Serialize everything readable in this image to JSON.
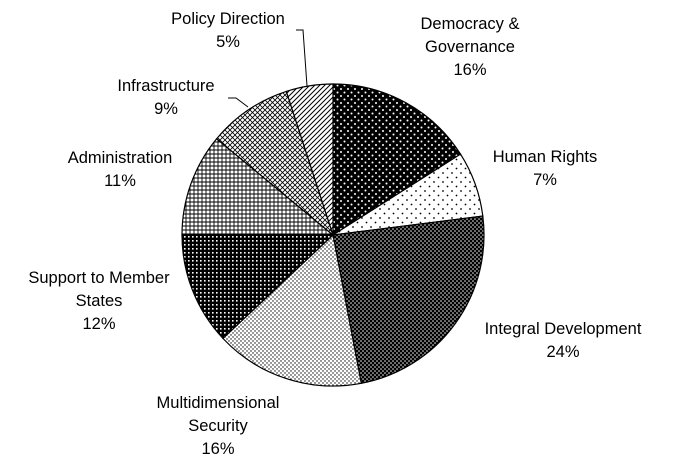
{
  "chart_data": {
    "type": "pie",
    "title": "",
    "start_angle_deg": 0,
    "direction": "clockwise",
    "slices": [
      {
        "label": "Democracy &\nGovernance",
        "value": 16,
        "display": "16%",
        "pattern": "dots-on-black"
      },
      {
        "label": "Human Rights",
        "value": 7,
        "display": "7%",
        "pattern": "sparse-dots"
      },
      {
        "label": "Integral Development",
        "value": 24,
        "display": "24%",
        "pattern": "dense-dots-dark"
      },
      {
        "label": "Multidimensional\nSecurity",
        "value": 16,
        "display": "16%",
        "pattern": "fine-dots-light"
      },
      {
        "label": "Support to Member\nStates",
        "value": 12,
        "display": "12%",
        "pattern": "dark-grid"
      },
      {
        "label": "Administration",
        "value": 11,
        "display": "11%",
        "pattern": "crosshatch"
      },
      {
        "label": "Infrastructure",
        "value": 9,
        "display": "9%",
        "pattern": "diagonal-grid"
      },
      {
        "label": "Policy Direction",
        "value": 5,
        "display": "5%",
        "pattern": "diagonal-lines"
      }
    ]
  }
}
